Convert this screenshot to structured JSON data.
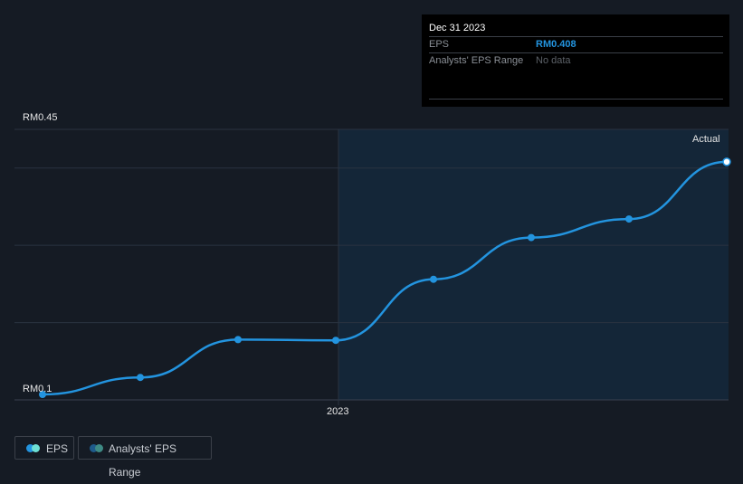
{
  "tooltip": {
    "date": "Dec 31 2023",
    "rows": [
      {
        "label": "EPS",
        "value": "RM0.408"
      },
      {
        "label": "Analysts' EPS Range",
        "value": "No data"
      }
    ]
  },
  "legend": [
    {
      "label": "EPS",
      "colors": [
        "#2394df",
        "#6ee0d5"
      ]
    },
    {
      "label": "Analysts' EPS Range",
      "colors": [
        "#1e5a8a",
        "#3e8a84"
      ]
    }
  ],
  "colors": {
    "line": "#2394df",
    "forecast_bg": "#142638",
    "bg": "#151b24"
  },
  "chart_data": {
    "type": "line",
    "title": "",
    "ylabel": "EPS",
    "y_labels": {
      "top": "RM0.45",
      "bottom": "RM0.1"
    },
    "ylim": [
      0.1,
      0.45
    ],
    "x_ticks": [
      "2023"
    ],
    "annotation": "Actual",
    "series": [
      {
        "name": "EPS",
        "x": [
          "Mar 2022",
          "Jun 2022",
          "Sep 2022",
          "Dec 2022",
          "Mar 2023",
          "Jun 2023",
          "Sep 2023",
          "Dec 2023"
        ],
        "values": [
          0.107,
          0.129,
          0.178,
          0.177,
          0.256,
          0.31,
          0.334,
          0.408
        ]
      }
    ]
  }
}
